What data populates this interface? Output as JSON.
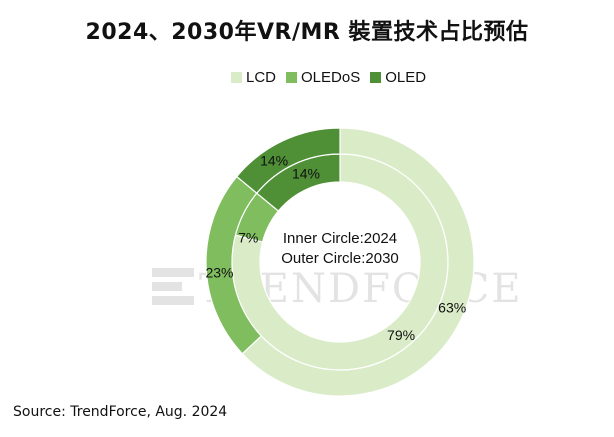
{
  "chart_data": {
    "type": "pie",
    "title": "2024、2030年VR/MR 裝置技术占比预估",
    "legend": [
      {
        "label": "LCD",
        "color": "#d9ecc7"
      },
      {
        "label": "OLEDoS",
        "color": "#7fbd5e"
      },
      {
        "label": "OLED",
        "color": "#4f8f36"
      }
    ],
    "categories": [
      "LCD",
      "OLEDoS",
      "OLED"
    ],
    "series": [
      {
        "name": "Inner Circle:2024",
        "values": [
          79,
          7,
          14
        ],
        "labels": [
          "79%",
          "7%",
          "14%"
        ]
      },
      {
        "name": "Outer Circle:2030",
        "values": [
          63,
          23,
          14
        ],
        "labels": [
          "63%",
          "23%",
          "14%"
        ]
      }
    ],
    "center_text": [
      "Inner Circle:2024",
      "Outer Circle:2030"
    ],
    "legend_position": "top"
  },
  "watermark": "TRENDFORCE",
  "source": "Source: TrendForce, Aug. 2024"
}
